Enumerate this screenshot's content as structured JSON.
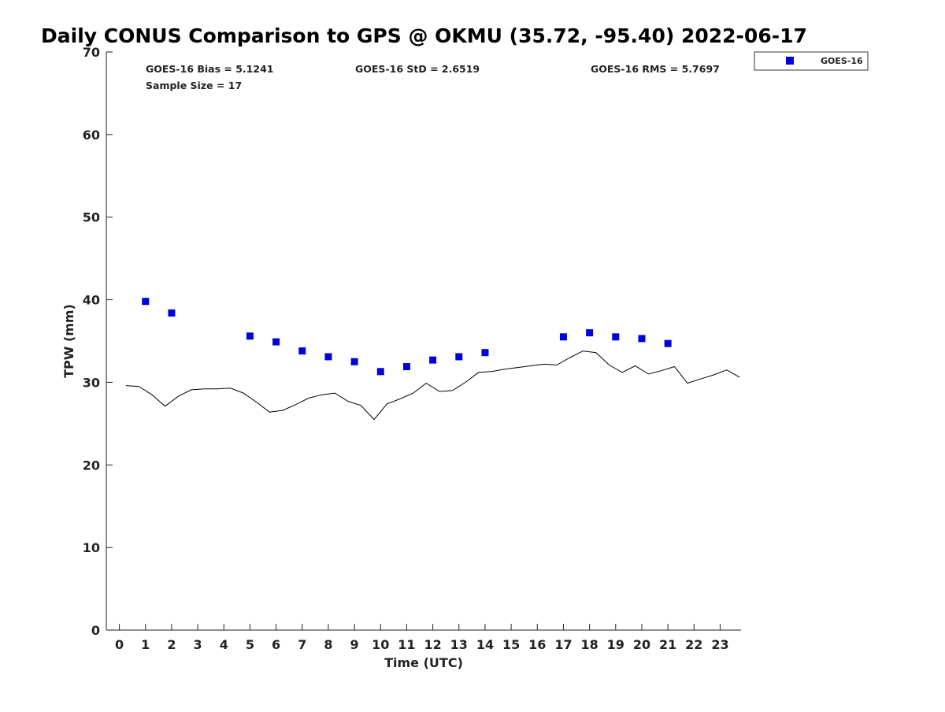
{
  "chart_data": {
    "type": "scatter",
    "title": "Daily CONUS Comparison to GPS @ OKMU (35.72, -95.40) 2022-06-17",
    "xlabel": "Time (UTC)",
    "ylabel": "TPW (mm)",
    "xlim": [
      -0.5,
      23.8
    ],
    "ylim": [
      0,
      70
    ],
    "x_ticks": [
      0,
      1,
      2,
      3,
      4,
      5,
      6,
      7,
      8,
      9,
      10,
      11,
      12,
      13,
      14,
      15,
      16,
      17,
      18,
      19,
      20,
      21,
      22,
      23
    ],
    "y_ticks": [
      0,
      10,
      20,
      30,
      40,
      50,
      60,
      70
    ],
    "grid": false,
    "legend": {
      "position": "top-right",
      "entries": [
        "GOES-16"
      ]
    },
    "stats": {
      "bias": "GOES-16 Bias = 5.1241",
      "std": "GOES-16 StD = 2.6519",
      "rms": "GOES-16 RMS = 5.7697",
      "sample": "Sample Size = 17"
    },
    "series": [
      {
        "name": "GOES-16",
        "kind": "markers",
        "color": "#0000dd",
        "marker": "square",
        "x": [
          1,
          2,
          5,
          6,
          7,
          8,
          9,
          10,
          11,
          12,
          13,
          14,
          17,
          18,
          19,
          20,
          21
        ],
        "y": [
          39.8,
          38.4,
          35.6,
          34.9,
          33.8,
          33.1,
          32.5,
          31.3,
          31.9,
          32.7,
          33.1,
          33.6,
          35.5,
          36.0,
          35.5,
          35.3,
          34.7
        ]
      },
      {
        "kind": "line",
        "color": "#000000",
        "x": [
          0.25,
          0.75,
          1.25,
          1.75,
          2.25,
          2.75,
          3.25,
          3.75,
          4.25,
          4.75,
          5.25,
          5.75,
          6.25,
          6.75,
          7.25,
          7.75,
          8.25,
          8.75,
          9.25,
          9.75,
          10.25,
          10.75,
          11.25,
          11.75,
          12.25,
          12.75,
          13.25,
          13.75,
          14.25,
          14.75,
          15.25,
          15.75,
          16.25,
          16.75,
          17.25,
          17.75,
          18.25,
          18.75,
          19.25,
          19.75,
          20.25,
          20.75,
          21.25,
          21.75,
          22.25,
          22.75,
          23.25,
          23.75
        ],
        "y": [
          29.6,
          29.5,
          28.5,
          27.1,
          28.3,
          29.1,
          29.2,
          29.2,
          29.3,
          28.7,
          27.6,
          26.4,
          26.6,
          27.3,
          28.1,
          28.5,
          28.7,
          27.7,
          27.2,
          25.5,
          27.4,
          28.0,
          28.7,
          29.9,
          28.9,
          29.0,
          30.0,
          31.2,
          31.3,
          31.6,
          31.8,
          32.0,
          32.2,
          32.1,
          33.0,
          33.8,
          33.6,
          32.1,
          31.2,
          32.0,
          31.0,
          31.4,
          31.9,
          29.9,
          30.4,
          30.9,
          31.5,
          30.6
        ]
      }
    ]
  }
}
